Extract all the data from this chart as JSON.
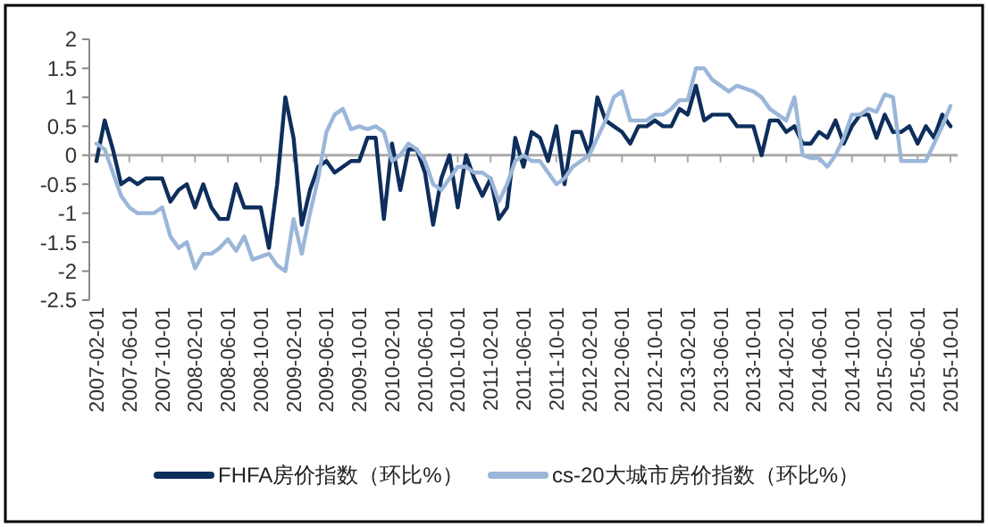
{
  "chart_data": {
    "type": "line",
    "categories": [
      "2007-02-01",
      null,
      null,
      null,
      "2007-06-01",
      null,
      null,
      null,
      "2007-10-01",
      null,
      null,
      null,
      "2008-02-01",
      null,
      null,
      null,
      "2008-06-01",
      null,
      null,
      null,
      "2008-10-01",
      null,
      null,
      null,
      "2009-02-01",
      null,
      null,
      null,
      "2009-06-01",
      null,
      null,
      null,
      "2009-10-01",
      null,
      null,
      null,
      "2010-02-01",
      null,
      null,
      null,
      "2010-06-01",
      null,
      null,
      null,
      "2010-10-01",
      null,
      null,
      null,
      "2011-02-01",
      null,
      null,
      null,
      "2011-06-01",
      null,
      null,
      null,
      "2011-10-01",
      null,
      null,
      null,
      "2012-02-01",
      null,
      null,
      null,
      "2012-06-01",
      null,
      null,
      null,
      "2012-10-01",
      null,
      null,
      null,
      "2013-02-01",
      null,
      null,
      null,
      "2013-06-01",
      null,
      null,
      null,
      "2013-10-01",
      null,
      null,
      null,
      "2014-02-01",
      null,
      null,
      null,
      "2014-06-01",
      null,
      null,
      null,
      "2014-10-01",
      null,
      null,
      null,
      "2015-02-01",
      null,
      null,
      null,
      "2015-06-01",
      null,
      null,
      null,
      "2015-10-01"
    ],
    "series": [
      {
        "name": "FHFA房价指数（环比%）",
        "color": "#0e2e5c",
        "values": [
          -0.1,
          0.6,
          0.1,
          -0.5,
          -0.4,
          -0.5,
          -0.4,
          -0.4,
          -0.4,
          -0.8,
          -0.6,
          -0.5,
          -0.9,
          -0.5,
          -0.9,
          -1.1,
          -1.1,
          -0.5,
          -0.9,
          -0.9,
          -0.9,
          -1.6,
          -0.5,
          1.0,
          0.3,
          -1.2,
          -0.6,
          -0.2,
          -0.1,
          -0.3,
          -0.2,
          -0.1,
          -0.1,
          0.3,
          0.3,
          -1.1,
          0.2,
          -0.6,
          0.1,
          0.1,
          -0.3,
          -1.2,
          -0.4,
          0.0,
          -0.9,
          0.0,
          -0.4,
          -0.7,
          -0.4,
          -1.1,
          -0.9,
          0.3,
          -0.2,
          0.4,
          0.3,
          -0.1,
          0.5,
          -0.5,
          0.4,
          0.4,
          0.0,
          1.0,
          0.6,
          0.5,
          0.4,
          0.2,
          0.5,
          0.5,
          0.6,
          0.5,
          0.5,
          0.8,
          0.7,
          1.2,
          0.6,
          0.7,
          0.7,
          0.7,
          0.5,
          0.5,
          0.5,
          0.0,
          0.6,
          0.6,
          0.4,
          0.5,
          0.2,
          0.2,
          0.4,
          0.3,
          0.6,
          0.2,
          0.5,
          0.7,
          0.7,
          0.3,
          0.7,
          0.4,
          0.4,
          0.5,
          0.2,
          0.5,
          0.3,
          0.7,
          0.5
        ]
      },
      {
        "name": "cs-20大城市房价指数（环比%）",
        "color": "#9bb6d9",
        "values": [
          0.2,
          0.1,
          -0.3,
          -0.7,
          -0.9,
          -1.0,
          -1.0,
          -1.0,
          -0.9,
          -1.4,
          -1.6,
          -1.5,
          -1.95,
          -1.7,
          -1.7,
          -1.6,
          -1.45,
          -1.65,
          -1.4,
          -1.8,
          -1.75,
          -1.7,
          -1.9,
          -2.0,
          -1.1,
          -1.7,
          -1.0,
          -0.4,
          0.4,
          0.7,
          0.8,
          0.45,
          0.5,
          0.45,
          0.5,
          0.4,
          -0.1,
          0.0,
          0.2,
          0.1,
          -0.1,
          -0.5,
          -0.6,
          -0.4,
          -0.2,
          -0.2,
          -0.3,
          -0.3,
          -0.4,
          -0.8,
          -0.5,
          -0.1,
          0.0,
          -0.1,
          -0.1,
          -0.3,
          -0.5,
          -0.4,
          -0.2,
          -0.1,
          0.0,
          0.3,
          0.6,
          1.0,
          1.1,
          0.6,
          0.6,
          0.6,
          0.7,
          0.7,
          0.8,
          0.95,
          0.95,
          1.5,
          1.5,
          1.3,
          1.2,
          1.1,
          1.2,
          1.15,
          1.1,
          1.0,
          0.8,
          0.7,
          0.6,
          1.0,
          0.0,
          -0.05,
          -0.05,
          -0.2,
          0.0,
          0.3,
          0.7,
          0.7,
          0.8,
          0.75,
          1.05,
          1.0,
          -0.1,
          -0.1,
          -0.1,
          -0.1,
          0.2,
          0.5,
          0.85
        ]
      }
    ],
    "ylim": [
      -2.5,
      2
    ],
    "yticks": [
      -2.5,
      -2,
      -1.5,
      -1,
      -0.5,
      0,
      0.5,
      1,
      1.5,
      2
    ],
    "legend": "bottom",
    "line_style": "solid",
    "marker": "none"
  }
}
